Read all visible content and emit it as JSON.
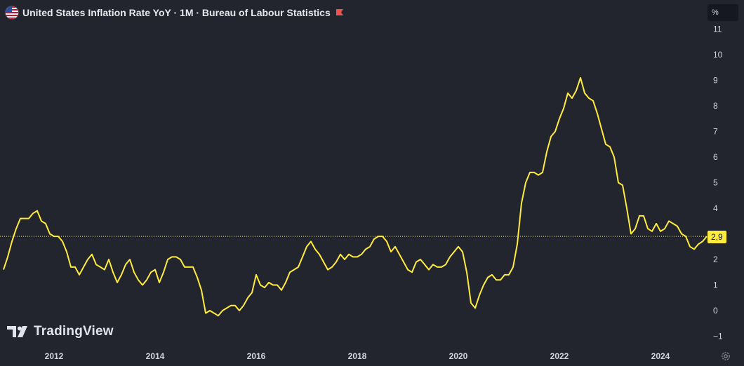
{
  "header": {
    "title": "United States Inflation Rate YoY · 1M · Bureau of Labour Statistics",
    "flag_icon": "us-flag-icon",
    "marker_icon": "red-flag-icon",
    "marker_color": "#ef5350"
  },
  "axis": {
    "unit": "%"
  },
  "last_value_label": "2,9",
  "brand": {
    "name": "TradingView"
  },
  "colors": {
    "line": "#ffeb3b",
    "background": "#22252d",
    "text": "#d1d4dc"
  },
  "chart_data": {
    "type": "line",
    "title": "United States Inflation Rate YoY",
    "ylim": [
      -1,
      11
    ],
    "yticks": [
      -1,
      0,
      1,
      2,
      3,
      4,
      5,
      6,
      7,
      8,
      9,
      10,
      11
    ],
    "xticks": [
      "2012",
      "2014",
      "2016",
      "2018",
      "2020",
      "2022",
      "2024"
    ],
    "grid": false,
    "last_value": 2.9,
    "series": [
      {
        "color": "#ffeb3b",
        "x": [
          "2011-01",
          "2011-02",
          "2011-03",
          "2011-04",
          "2011-05",
          "2011-06",
          "2011-07",
          "2011-08",
          "2011-09",
          "2011-10",
          "2011-11",
          "2011-12",
          "2012-01",
          "2012-02",
          "2012-03",
          "2012-04",
          "2012-05",
          "2012-06",
          "2012-07",
          "2012-08",
          "2012-09",
          "2012-10",
          "2012-11",
          "2012-12",
          "2013-01",
          "2013-02",
          "2013-03",
          "2013-04",
          "2013-05",
          "2013-06",
          "2013-07",
          "2013-08",
          "2013-09",
          "2013-10",
          "2013-11",
          "2013-12",
          "2014-01",
          "2014-02",
          "2014-03",
          "2014-04",
          "2014-05",
          "2014-06",
          "2014-07",
          "2014-08",
          "2014-09",
          "2014-10",
          "2014-11",
          "2014-12",
          "2015-01",
          "2015-02",
          "2015-03",
          "2015-04",
          "2015-05",
          "2015-06",
          "2015-07",
          "2015-08",
          "2015-09",
          "2015-10",
          "2015-11",
          "2015-12",
          "2016-01",
          "2016-02",
          "2016-03",
          "2016-04",
          "2016-05",
          "2016-06",
          "2016-07",
          "2016-08",
          "2016-09",
          "2016-10",
          "2016-11",
          "2016-12",
          "2017-01",
          "2017-02",
          "2017-03",
          "2017-04",
          "2017-05",
          "2017-06",
          "2017-07",
          "2017-08",
          "2017-09",
          "2017-10",
          "2017-11",
          "2017-12",
          "2018-01",
          "2018-02",
          "2018-03",
          "2018-04",
          "2018-05",
          "2018-06",
          "2018-07",
          "2018-08",
          "2018-09",
          "2018-10",
          "2018-11",
          "2018-12",
          "2019-01",
          "2019-02",
          "2019-03",
          "2019-04",
          "2019-05",
          "2019-06",
          "2019-07",
          "2019-08",
          "2019-09",
          "2019-10",
          "2019-11",
          "2019-12",
          "2020-01",
          "2020-02",
          "2020-03",
          "2020-04",
          "2020-05",
          "2020-06",
          "2020-07",
          "2020-08",
          "2020-09",
          "2020-10",
          "2020-11",
          "2020-12",
          "2021-01",
          "2021-02",
          "2021-03",
          "2021-04",
          "2021-05",
          "2021-06",
          "2021-07",
          "2021-08",
          "2021-09",
          "2021-10",
          "2021-11",
          "2021-12",
          "2022-01",
          "2022-02",
          "2022-03",
          "2022-04",
          "2022-05",
          "2022-06",
          "2022-07",
          "2022-08",
          "2022-09",
          "2022-10",
          "2022-11",
          "2022-12",
          "2023-01",
          "2023-02",
          "2023-03",
          "2023-04",
          "2023-05",
          "2023-06",
          "2023-07",
          "2023-08",
          "2023-09",
          "2023-10",
          "2023-11",
          "2023-12",
          "2024-01",
          "2024-02",
          "2024-03",
          "2024-04",
          "2024-05",
          "2024-06",
          "2024-07",
          "2024-08",
          "2024-09",
          "2024-10",
          "2024-11",
          "2024-12"
        ],
        "values": [
          1.6,
          2.1,
          2.7,
          3.2,
          3.6,
          3.6,
          3.6,
          3.8,
          3.9,
          3.5,
          3.4,
          3.0,
          2.9,
          2.9,
          2.7,
          2.3,
          1.7,
          1.7,
          1.4,
          1.7,
          2.0,
          2.2,
          1.8,
          1.7,
          1.6,
          2.0,
          1.5,
          1.1,
          1.4,
          1.8,
          2.0,
          1.5,
          1.2,
          1.0,
          1.2,
          1.5,
          1.6,
          1.1,
          1.5,
          2.0,
          2.1,
          2.1,
          2.0,
          1.7,
          1.7,
          1.7,
          1.3,
          0.8,
          -0.1,
          0.0,
          -0.1,
          -0.2,
          0.0,
          0.1,
          0.2,
          0.2,
          0.0,
          0.2,
          0.5,
          0.7,
          1.4,
          1.0,
          0.9,
          1.1,
          1.0,
          1.0,
          0.8,
          1.1,
          1.5,
          1.6,
          1.7,
          2.1,
          2.5,
          2.7,
          2.4,
          2.2,
          1.9,
          1.6,
          1.7,
          1.9,
          2.2,
          2.0,
          2.2,
          2.1,
          2.1,
          2.2,
          2.4,
          2.5,
          2.8,
          2.9,
          2.9,
          2.7,
          2.3,
          2.5,
          2.2,
          1.9,
          1.6,
          1.5,
          1.9,
          2.0,
          1.8,
          1.6,
          1.8,
          1.7,
          1.7,
          1.8,
          2.1,
          2.3,
          2.5,
          2.3,
          1.5,
          0.3,
          0.1,
          0.6,
          1.0,
          1.3,
          1.4,
          1.2,
          1.2,
          1.4,
          1.4,
          1.7,
          2.6,
          4.2,
          5.0,
          5.4,
          5.4,
          5.3,
          5.4,
          6.2,
          6.8,
          7.0,
          7.5,
          7.9,
          8.5,
          8.3,
          8.6,
          9.1,
          8.5,
          8.3,
          8.2,
          7.7,
          7.1,
          6.5,
          6.4,
          6.0,
          5.0,
          4.9,
          4.0,
          3.0,
          3.2,
          3.7,
          3.7,
          3.2,
          3.1,
          3.4,
          3.1,
          3.2,
          3.5,
          3.4,
          3.3,
          3.0,
          2.9,
          2.5,
          2.4,
          2.6,
          2.7,
          2.9
        ]
      }
    ]
  }
}
